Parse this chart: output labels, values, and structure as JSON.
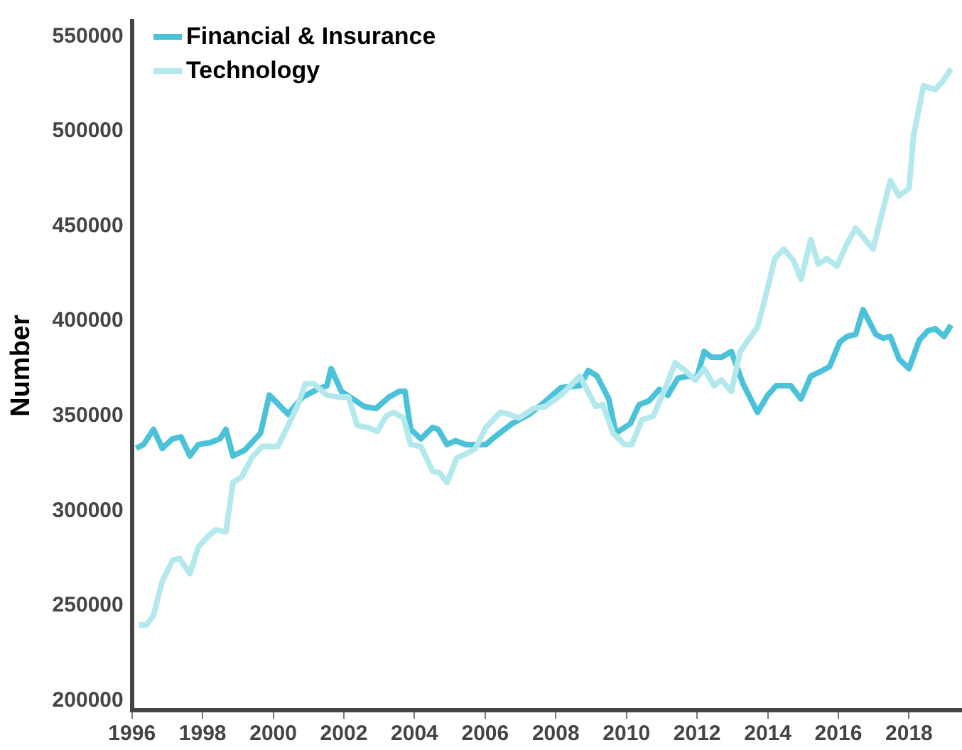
{
  "chart_data": {
    "type": "line",
    "ylabel": "Number",
    "xlim": [
      1996,
      2019.5
    ],
    "xticks": [
      1996,
      1998,
      2000,
      2002,
      2004,
      2006,
      2008,
      2010,
      2012,
      2014,
      2016,
      2018
    ],
    "ylim": [
      195000,
      558000
    ],
    "yticks": [
      200000,
      250000,
      300000,
      350000,
      400000,
      450000,
      500000,
      550000
    ],
    "grid": false,
    "legend": "top left",
    "marker": "none",
    "line_style": "solid",
    "series": [
      {
        "name": "Financial & Insurance",
        "color": "#4bc2d9",
        "x": [
          1996.12,
          1996.33,
          1996.61,
          1996.86,
          1997.15,
          1997.39,
          1997.64,
          1997.88,
          1998.21,
          1998.49,
          1998.66,
          1998.86,
          1999.19,
          1999.64,
          1999.89,
          2000.42,
          2000.83,
          2001.24,
          2001.52,
          2001.64,
          2001.93,
          2002.26,
          2002.58,
          2002.91,
          2003.28,
          2003.57,
          2003.73,
          2003.89,
          2004.18,
          2004.51,
          2004.67,
          2004.92,
          2005.16,
          2005.45,
          2006.02,
          2006.27,
          2006.76,
          2007.25,
          2007.66,
          2008.15,
          2008.68,
          2008.92,
          2009.17,
          2009.5,
          2009.7,
          2010.11,
          2010.36,
          2010.64,
          2010.93,
          2011.17,
          2011.46,
          2011.75,
          2011.99,
          2012.2,
          2012.4,
          2012.69,
          2012.97,
          2013.3,
          2013.71,
          2014.0,
          2014.24,
          2014.65,
          2014.94,
          2015.22,
          2015.55,
          2015.75,
          2016.04,
          2016.25,
          2016.49,
          2016.7,
          2017.06,
          2017.27,
          2017.47,
          2017.72,
          2018.0,
          2018.29,
          2018.54,
          2018.74,
          2018.99,
          2019.19
        ],
        "values": [
          333000,
          335000,
          343000,
          333000,
          338000,
          339000,
          329000,
          335000,
          336000,
          338000,
          343000,
          329000,
          332000,
          341000,
          361000,
          351000,
          360000,
          364000,
          366000,
          375000,
          363000,
          359000,
          355000,
          354000,
          360000,
          363000,
          363000,
          343000,
          338000,
          344000,
          343000,
          335000,
          337000,
          335000,
          335000,
          339000,
          346000,
          351000,
          357000,
          365000,
          366000,
          374000,
          371000,
          359000,
          341000,
          346000,
          356000,
          358000,
          364000,
          361000,
          370000,
          371000,
          370000,
          384000,
          381000,
          381000,
          384000,
          367000,
          352000,
          361000,
          366000,
          366000,
          359000,
          371000,
          374000,
          376000,
          389000,
          392000,
          393000,
          406000,
          393000,
          391000,
          392000,
          380000,
          375000,
          390000,
          395000,
          396000,
          392000,
          398000
        ]
      },
      {
        "name": "Technology",
        "color": "#b3e9ed",
        "x": [
          1996.2,
          1996.41,
          1996.61,
          1996.86,
          1997.15,
          1997.35,
          1997.64,
          1997.88,
          1998.17,
          1998.37,
          1998.66,
          1998.86,
          1999.11,
          1999.39,
          1999.68,
          2000.13,
          2000.42,
          2000.7,
          2000.91,
          2001.15,
          2001.52,
          2001.85,
          2002.13,
          2002.38,
          2002.67,
          2002.95,
          2003.2,
          2003.4,
          2003.69,
          2003.89,
          2004.18,
          2004.51,
          2004.71,
          2004.92,
          2005.2,
          2005.45,
          2005.73,
          2006.02,
          2006.43,
          2006.67,
          2006.96,
          2007.37,
          2007.7,
          2008.07,
          2008.31,
          2008.68,
          2008.88,
          2009.13,
          2009.33,
          2009.62,
          2009.95,
          2010.15,
          2010.44,
          2010.76,
          2011.13,
          2011.38,
          2011.66,
          2011.95,
          2012.2,
          2012.48,
          2012.69,
          2012.97,
          2013.22,
          2013.71,
          2013.91,
          2014.2,
          2014.45,
          2014.73,
          2014.94,
          2015.22,
          2015.43,
          2015.67,
          2015.96,
          2016.25,
          2016.49,
          2016.98,
          2017.47,
          2017.72,
          2018.0,
          2018.13,
          2018.41,
          2018.74,
          2018.94,
          2019.19
        ],
        "values": [
          240000,
          240000,
          245000,
          263000,
          274000,
          275000,
          267000,
          281000,
          287000,
          290000,
          289000,
          315000,
          318000,
          328000,
          334000,
          334000,
          345000,
          356000,
          367000,
          367000,
          361000,
          360000,
          360000,
          345000,
          344000,
          342000,
          350000,
          352000,
          349000,
          335000,
          334000,
          321000,
          320000,
          315000,
          328000,
          330000,
          333000,
          344000,
          352000,
          351000,
          349000,
          354000,
          355000,
          360000,
          364000,
          371000,
          364000,
          355000,
          356000,
          341000,
          335000,
          335000,
          348000,
          350000,
          366000,
          378000,
          374000,
          369000,
          375000,
          366000,
          369000,
          363000,
          384000,
          397000,
          411000,
          433000,
          438000,
          432000,
          422000,
          443000,
          430000,
          433000,
          429000,
          441000,
          449000,
          438000,
          474000,
          466000,
          470000,
          498000,
          524000,
          522000,
          526000,
          533000
        ]
      }
    ]
  }
}
